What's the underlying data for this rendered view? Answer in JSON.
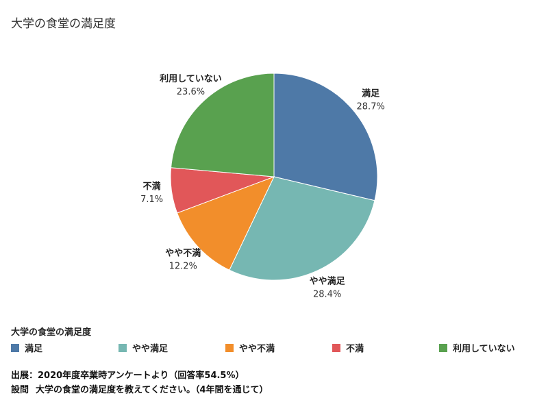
{
  "title": "大学の食堂の満足度",
  "chart_data": {
    "type": "pie",
    "title": "大学の食堂の満足度",
    "start_angle": "12 o'clock",
    "direction": "clockwise",
    "legend_position": "bottom",
    "slices": [
      {
        "label": "満足",
        "value": 28.7,
        "display": "28.7%",
        "color": "#4e79a7"
      },
      {
        "label": "やや満足",
        "value": 28.4,
        "display": "28.4%",
        "color": "#76b7b2"
      },
      {
        "label": "やや不満",
        "value": 12.2,
        "display": "12.2%",
        "color": "#f28e2b"
      },
      {
        "label": "不満",
        "value": 7.1,
        "display": "7.1%",
        "color": "#e15759"
      },
      {
        "label": "利用していない",
        "value": 23.6,
        "display": "23.6%",
        "color": "#59a14f"
      }
    ]
  },
  "legend": {
    "title": "大学の食堂の満足度",
    "items": [
      {
        "label": "満足",
        "color": "#4e79a7"
      },
      {
        "label": "やや満足",
        "color": "#76b7b2"
      },
      {
        "label": "やや不満",
        "color": "#f28e2b"
      },
      {
        "label": "不満",
        "color": "#e15759"
      },
      {
        "label": "利用していない",
        "color": "#59a14f"
      }
    ]
  },
  "footnotes": {
    "source": "出展：2020年度卒業時アンケートより（回答率54.5%）",
    "question_label": "設問",
    "question_text": "大学の食堂の満足度を教えてください。（4年間を通じて）"
  }
}
